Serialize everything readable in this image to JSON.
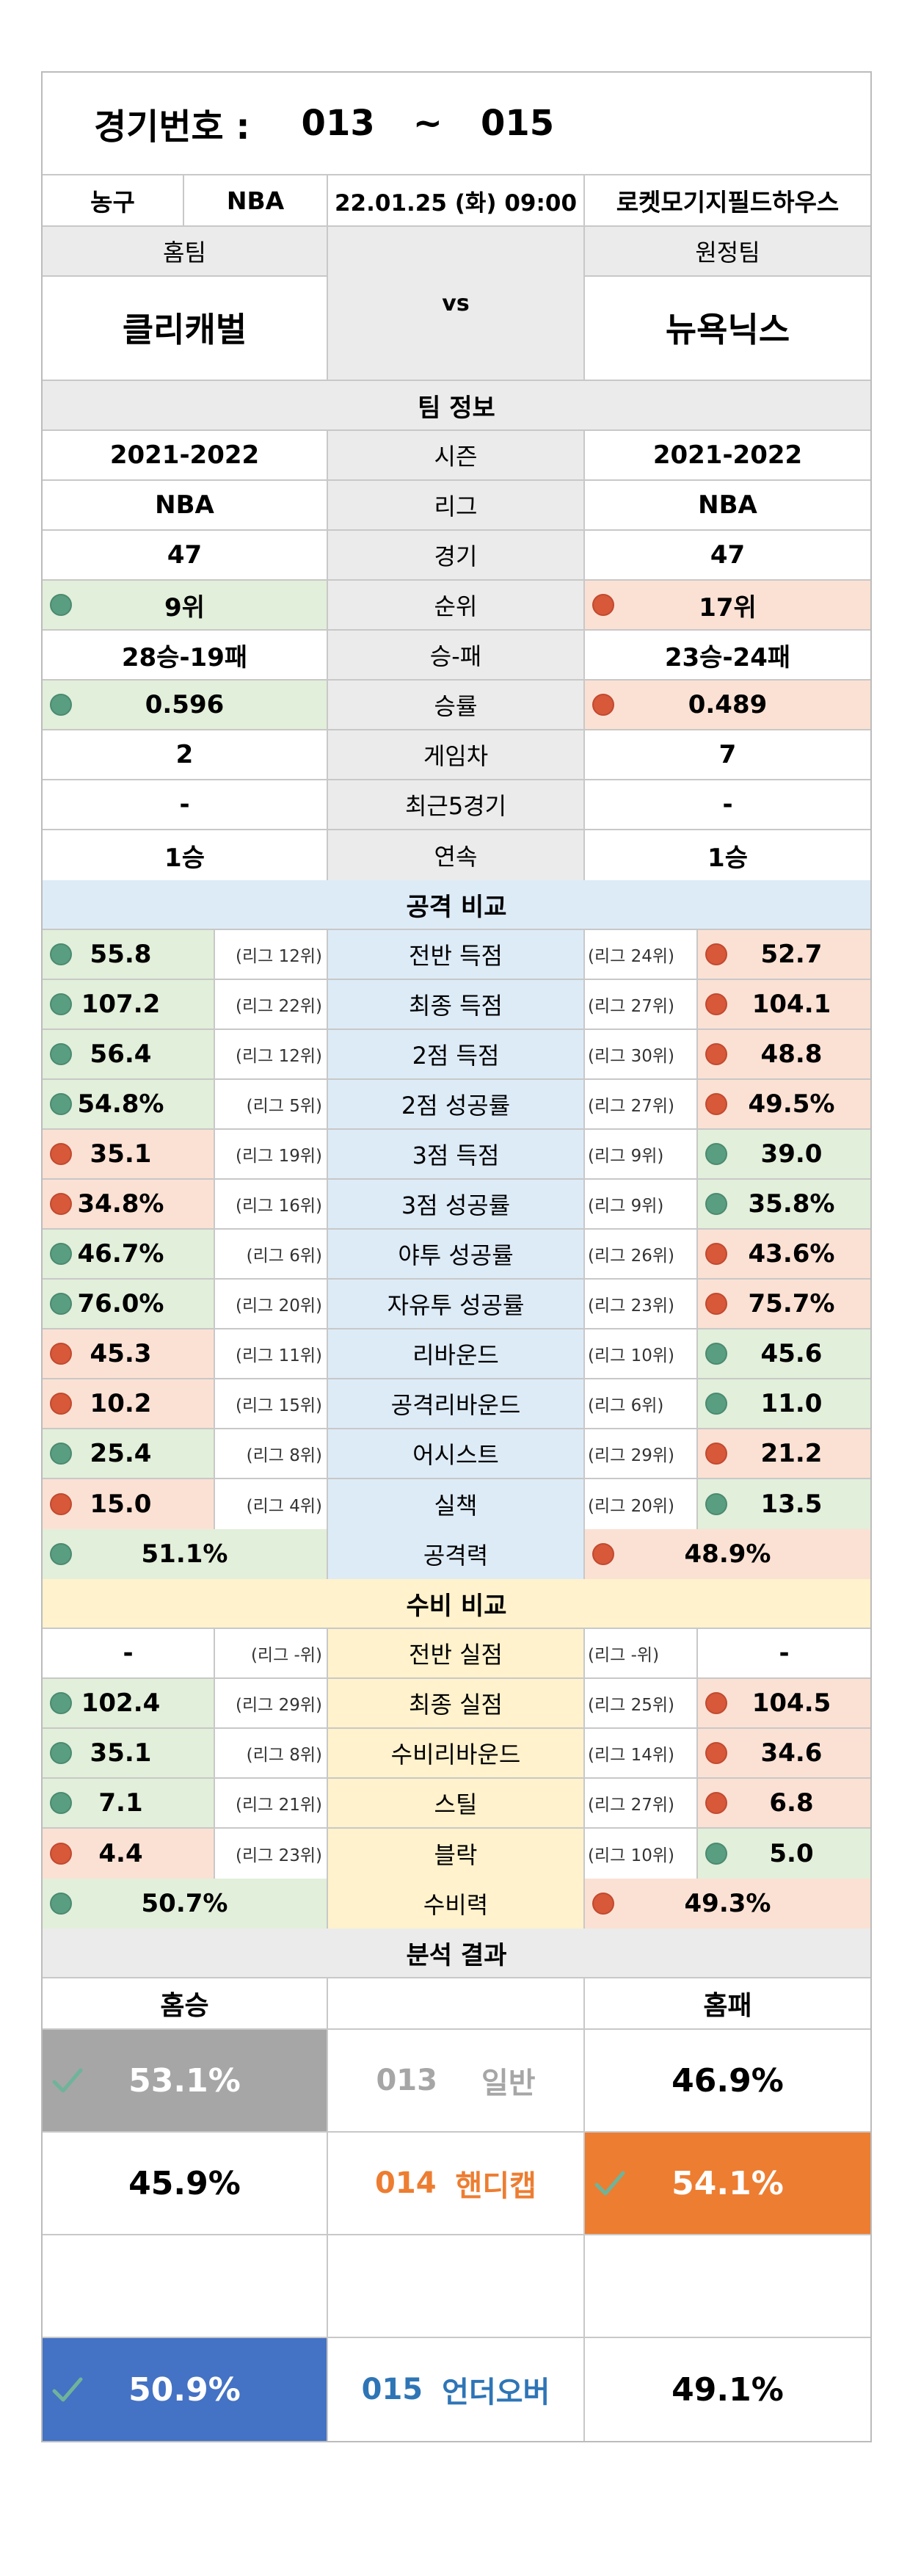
{
  "title": {
    "label": "경기번호 :",
    "from": "013",
    "sep": "~",
    "to": "015"
  },
  "info": {
    "sport": "농구",
    "league": "NBA",
    "datetime": "22.01.25 (화) 09:00",
    "stadium": "로켓모기지필드하우스"
  },
  "teams": {
    "home_label": "홈팀",
    "away_label": "원정팀",
    "vs": "vs",
    "home": "클리캐벌",
    "away": "뉴욕닉스"
  },
  "team_info": {
    "header": "팀 정보",
    "rows": [
      {
        "home": "2021-2022",
        "label": "시즌",
        "away": "2021-2022",
        "hc": "",
        "ac": ""
      },
      {
        "home": "NBA",
        "label": "리그",
        "away": "NBA",
        "hc": "",
        "ac": ""
      },
      {
        "home": "47",
        "label": "경기",
        "away": "47",
        "hc": "",
        "ac": ""
      },
      {
        "home": "9위",
        "label": "순위",
        "away": "17위",
        "hc": "g",
        "ac": "r"
      },
      {
        "home": "28승-19패",
        "label": "승-패",
        "away": "23승-24패",
        "hc": "",
        "ac": ""
      },
      {
        "home": "0.596",
        "label": "승률",
        "away": "0.489",
        "hc": "g",
        "ac": "r"
      },
      {
        "home": "2",
        "label": "게임차",
        "away": "7",
        "hc": "",
        "ac": ""
      },
      {
        "home": "-",
        "label": "최근5경기",
        "away": "-",
        "hc": "",
        "ac": ""
      },
      {
        "home": "1승",
        "label": "연속",
        "away": "1승",
        "hc": "",
        "ac": ""
      }
    ]
  },
  "attack": {
    "header": "공격 비교",
    "rows": [
      {
        "home": "55.8",
        "home_rank": "(리그 12위)",
        "label": "전반 득점",
        "away_rank": "(리그 24위)",
        "away": "52.7",
        "hc": "g",
        "ac": "r"
      },
      {
        "home": "107.2",
        "home_rank": "(리그 22위)",
        "label": "최종 득점",
        "away_rank": "(리그 27위)",
        "away": "104.1",
        "hc": "g",
        "ac": "r"
      },
      {
        "home": "56.4",
        "home_rank": "(리그 12위)",
        "label": "2점 득점",
        "away_rank": "(리그 30위)",
        "away": "48.8",
        "hc": "g",
        "ac": "r"
      },
      {
        "home": "54.8%",
        "home_rank": "(리그 5위)",
        "label": "2점 성공률",
        "away_rank": "(리그 27위)",
        "away": "49.5%",
        "hc": "g",
        "ac": "r"
      },
      {
        "home": "35.1",
        "home_rank": "(리그 19위)",
        "label": "3점 득점",
        "away_rank": "(리그 9위)",
        "away": "39.0",
        "hc": "r",
        "ac": "g"
      },
      {
        "home": "34.8%",
        "home_rank": "(리그 16위)",
        "label": "3점 성공률",
        "away_rank": "(리그 9위)",
        "away": "35.8%",
        "hc": "r",
        "ac": "g"
      },
      {
        "home": "46.7%",
        "home_rank": "(리그 6위)",
        "label": "야투 성공률",
        "away_rank": "(리그 26위)",
        "away": "43.6%",
        "hc": "g",
        "ac": "r"
      },
      {
        "home": "76.0%",
        "home_rank": "(리그 20위)",
        "label": "자유투 성공률",
        "away_rank": "(리그 23위)",
        "away": "75.7%",
        "hc": "g",
        "ac": "r"
      },
      {
        "home": "45.3",
        "home_rank": "(리그 11위)",
        "label": "리바운드",
        "away_rank": "(리그 10위)",
        "away": "45.6",
        "hc": "r",
        "ac": "g"
      },
      {
        "home": "10.2",
        "home_rank": "(리그 15위)",
        "label": "공격리바운드",
        "away_rank": "(리그 6위)",
        "away": "11.0",
        "hc": "r",
        "ac": "g"
      },
      {
        "home": "25.4",
        "home_rank": "(리그 8위)",
        "label": "어시스트",
        "away_rank": "(리그 29위)",
        "away": "21.2",
        "hc": "g",
        "ac": "r"
      },
      {
        "home": "15.0",
        "home_rank": "(리그 4위)",
        "label": "실책",
        "away_rank": "(리그 20위)",
        "away": "13.5",
        "hc": "r",
        "ac": "g"
      }
    ],
    "power": {
      "home": "51.1%",
      "label": "공격력",
      "away": "48.9%",
      "hc": "g",
      "ac": "r"
    }
  },
  "defense": {
    "header": "수비 비교",
    "rows": [
      {
        "home": "-",
        "home_rank": "(리그 -위)",
        "label": "전반 실점",
        "away_rank": "(리그 -위)",
        "away": "-",
        "hc": "",
        "ac": ""
      },
      {
        "home": "102.4",
        "home_rank": "(리그 29위)",
        "label": "최종 실점",
        "away_rank": "(리그 25위)",
        "away": "104.5",
        "hc": "g",
        "ac": "r"
      },
      {
        "home": "35.1",
        "home_rank": "(리그 8위)",
        "label": "수비리바운드",
        "away_rank": "(리그 14위)",
        "away": "34.6",
        "hc": "g",
        "ac": "r"
      },
      {
        "home": "7.1",
        "home_rank": "(리그 21위)",
        "label": "스틸",
        "away_rank": "(리그 27위)",
        "away": "6.8",
        "hc": "g",
        "ac": "r"
      },
      {
        "home": "4.4",
        "home_rank": "(리그 23위)",
        "label": "블락",
        "away_rank": "(리그 10위)",
        "away": "5.0",
        "hc": "r",
        "ac": "g"
      }
    ],
    "power": {
      "home": "50.7%",
      "label": "수비력",
      "away": "49.3%",
      "hc": "g",
      "ac": "r"
    }
  },
  "analysis": {
    "header": "분석 결과",
    "home_label": "홈승",
    "away_label": "홈패",
    "rows": [
      {
        "home": "53.1%",
        "code": "013",
        "name": "일반",
        "away": "46.9%",
        "pick": "home",
        "pick_color": "#a6a6a6",
        "text_color": "#a6a6a6"
      },
      {
        "home": "45.9%",
        "code": "014",
        "name": "핸디캡",
        "away": "54.1%",
        "pick": "away",
        "pick_color": "#ed7d31",
        "text_color": "#ed7d31"
      },
      {
        "home": "50.9%",
        "code": "015",
        "name": "언더오버",
        "away": "49.1%",
        "pick": "home",
        "pick_color": "#4472c4",
        "text_color": "#2e75b6"
      }
    ]
  },
  "colors": {
    "green_bg": "#e2efda",
    "red_bg": "#fbe1d4",
    "gray_bg": "#ebebeb",
    "blue_bg": "#ddebf7",
    "yellow_bg": "#fff2cc"
  }
}
